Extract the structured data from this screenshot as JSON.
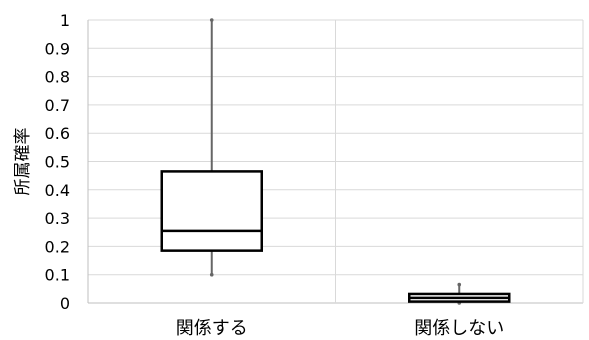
{
  "chart_data": {
    "type": "box",
    "ylabel": "所属確率",
    "ylim": [
      0,
      1
    ],
    "yticks": [
      "0",
      "0.1",
      "0.2",
      "0.3",
      "0.4",
      "0.5",
      "0.6",
      "0.7",
      "0.8",
      "0.9",
      "1"
    ],
    "categories": [
      "関係する",
      "関係しない"
    ],
    "boxes": [
      {
        "category": "関係する",
        "min": 0.1,
        "q1": 0.185,
        "median": 0.255,
        "q3": 0.465,
        "max": 1.0
      },
      {
        "category": "関係しない",
        "min": 0.0,
        "q1": 0.005,
        "median": 0.018,
        "q3": 0.032,
        "max": 0.065
      }
    ],
    "grid": true,
    "colors": {
      "box": "#000000",
      "whisker": "#666666",
      "grid": "#d9d9d9",
      "axis": "#bfbfbf"
    }
  }
}
